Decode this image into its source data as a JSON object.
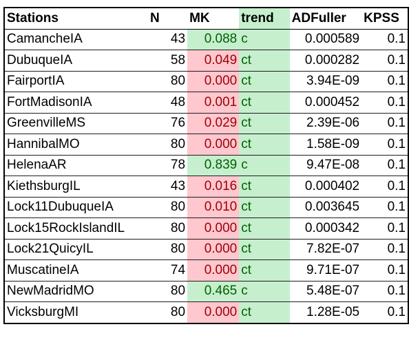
{
  "headers": [
    "Stations",
    "N",
    "MK",
    "trend",
    "ADFuller",
    "KPSS"
  ],
  "colors": {
    "sig_fill": "#ffc7ce",
    "sig_text": "#9c0006",
    "nonsig_fill": "#c6efce",
    "nonsig_text": "#006100"
  },
  "rows": [
    {
      "station": "CamancheIA",
      "n": "43",
      "mk": "0.088",
      "mk_sig": false,
      "trend": "c",
      "adf": "0.000589",
      "kpss": "0.1"
    },
    {
      "station": "DubuqueIA",
      "n": "58",
      "mk": "0.049",
      "mk_sig": true,
      "trend": "ct",
      "adf": "0.000282",
      "kpss": "0.1"
    },
    {
      "station": "FairportIA",
      "n": "80",
      "mk": "0.000",
      "mk_sig": true,
      "trend": "ct",
      "adf": "3.94E-09",
      "kpss": "0.1"
    },
    {
      "station": "FortMadisonIA",
      "n": "48",
      "mk": "0.001",
      "mk_sig": true,
      "trend": "ct",
      "adf": "0.000452",
      "kpss": "0.1"
    },
    {
      "station": "GreenvilleMS",
      "n": "76",
      "mk": "0.029",
      "mk_sig": true,
      "trend": "ct",
      "adf": "2.39E-06",
      "kpss": "0.1"
    },
    {
      "station": "HannibalMO",
      "n": "80",
      "mk": "0.000",
      "mk_sig": true,
      "trend": "ct",
      "adf": "1.58E-09",
      "kpss": "0.1"
    },
    {
      "station": "HelenaAR",
      "n": "78",
      "mk": "0.839",
      "mk_sig": false,
      "trend": "c",
      "adf": "9.47E-08",
      "kpss": "0.1"
    },
    {
      "station": "KiethsburgIL",
      "n": "43",
      "mk": "0.016",
      "mk_sig": true,
      "trend": "ct",
      "adf": "0.000402",
      "kpss": "0.1"
    },
    {
      "station": "Lock11DubuqueIA",
      "n": "80",
      "mk": "0.010",
      "mk_sig": true,
      "trend": "ct",
      "adf": "0.003645",
      "kpss": "0.1"
    },
    {
      "station": "Lock15RockIslandIL",
      "n": "80",
      "mk": "0.000",
      "mk_sig": true,
      "trend": "ct",
      "adf": "0.000342",
      "kpss": "0.1"
    },
    {
      "station": "Lock21QuicyIL",
      "n": "80",
      "mk": "0.000",
      "mk_sig": true,
      "trend": "ct",
      "adf": "7.82E-07",
      "kpss": "0.1"
    },
    {
      "station": "MuscatineIA",
      "n": "74",
      "mk": "0.000",
      "mk_sig": true,
      "trend": "ct",
      "adf": "9.71E-07",
      "kpss": "0.1"
    },
    {
      "station": "NewMadridMO",
      "n": "80",
      "mk": "0.465",
      "mk_sig": false,
      "trend": "c",
      "adf": "5.48E-07",
      "kpss": "0.1"
    },
    {
      "station": "VicksburgMI",
      "n": "80",
      "mk": "0.000",
      "mk_sig": true,
      "trend": "ct",
      "adf": "1.28E-05",
      "kpss": "0.1"
    }
  ]
}
